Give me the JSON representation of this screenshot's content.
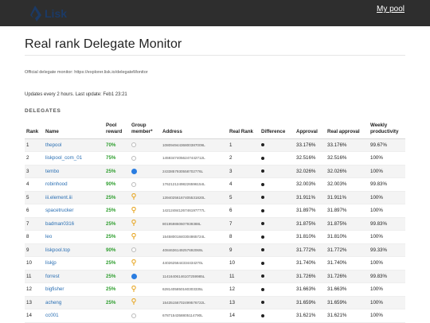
{
  "header": {
    "logo_text": "Lisk",
    "my_pool_label": "My pool"
  },
  "page": {
    "title": "Real rank Delegate Monitor",
    "description": "Official delegate monitor: https://explorer.lisk.io/delegateMonitor",
    "updates": "Updates every 2 hours. Last update: Feb1 23:21",
    "section_label": "DELEGATES"
  },
  "table": {
    "headers": {
      "rank": "Rank",
      "name": "Name",
      "pool_reward": "Pool reward",
      "group_member": "Group member*",
      "address": "Address",
      "real_rank": "Real Rank",
      "difference": "Difference",
      "approval": "Approval",
      "real_approval": "Real approval",
      "weekly_productivity": "Weekly productivity"
    },
    "rows": [
      {
        "rank": "1",
        "name": "thepool",
        "reward": "70%",
        "group": "empty",
        "address": "10809494436800387009L",
        "real_rank": "1",
        "approval": "33.176%",
        "real_approval": "33.176%",
        "productivity": "99.67%"
      },
      {
        "rank": "2",
        "name": "liskpool_com_01",
        "reward": "75%",
        "group": "empty",
        "address": "14593474056247442712L",
        "real_rank": "2",
        "approval": "32.516%",
        "real_approval": "32.516%",
        "productivity": "100%"
      },
      {
        "rank": "3",
        "name": "tembo",
        "reward": "25%",
        "group": "full",
        "address": "2433857930558702776L",
        "real_rank": "3",
        "approval": "32.026%",
        "real_approval": "32.026%",
        "productivity": "100%"
      },
      {
        "rank": "4",
        "name": "robinhood",
        "reward": "90%",
        "group": "empty",
        "address": "17621212498226596154L",
        "real_rank": "4",
        "approval": "32.003%",
        "real_approval": "32.003%",
        "productivity": "99.83%"
      },
      {
        "rank": "5",
        "name": "iii.element.iii",
        "reward": "25%",
        "group": "pin",
        "address": "13940256167405531820L",
        "real_rank": "5",
        "approval": "31.911%",
        "real_approval": "31.911%",
        "productivity": "100%"
      },
      {
        "rank": "6",
        "name": "spacetrucker",
        "reward": "25%",
        "group": "pin",
        "address": "14212484126746197777L",
        "real_rank": "6",
        "approval": "31.897%",
        "real_approval": "31.897%",
        "productivity": "100%"
      },
      {
        "rank": "7",
        "name": "badman0316",
        "reward": "25%",
        "group": "pin",
        "address": "801959860607939388L",
        "real_rank": "7",
        "approval": "31.875%",
        "real_approval": "31.875%",
        "productivity": "99.83%"
      },
      {
        "rank": "8",
        "name": "leo",
        "reward": "25%",
        "group": "pin",
        "address": "15458001840304865724L",
        "real_rank": "8",
        "approval": "31.810%",
        "real_approval": "31.810%",
        "productivity": "100%"
      },
      {
        "rank": "9",
        "name": "liskpool.top",
        "reward": "90%",
        "group": "empty",
        "address": "4084636149257692069L",
        "real_rank": "9",
        "approval": "31.772%",
        "real_approval": "31.772%",
        "productivity": "99.33%"
      },
      {
        "rank": "10",
        "name": "liskjp",
        "reward": "25%",
        "group": "pin",
        "address": "4402625644334434270L",
        "real_rank": "10",
        "approval": "31.740%",
        "real_approval": "31.740%",
        "productivity": "100%"
      },
      {
        "rank": "11",
        "name": "forrest",
        "reward": "25%",
        "group": "full",
        "address": "11416406146107259985L",
        "real_rank": "11",
        "approval": "31.726%",
        "real_approval": "31.726%",
        "productivity": "99.83%"
      },
      {
        "rank": "12",
        "name": "bigfisher",
        "reward": "25%",
        "group": "pin",
        "address": "6281405850160303335L",
        "real_rank": "12",
        "approval": "31.663%",
        "real_approval": "31.663%",
        "productivity": "100%"
      },
      {
        "rank": "13",
        "name": "acheng",
        "reward": "25%",
        "group": "pin",
        "address": "15435156702499576722L",
        "real_rank": "13",
        "approval": "31.659%",
        "real_approval": "31.659%",
        "productivity": "100%"
      },
      {
        "rank": "14",
        "name": "cc001",
        "reward": "",
        "group": "empty",
        "address": "6787154358805114790L",
        "real_rank": "14",
        "approval": "31.621%",
        "real_approval": "31.621%",
        "productivity": "100%"
      }
    ]
  },
  "colors": {
    "topbar": "#2e2e2e",
    "link": "#2a6fb3",
    "reward": "#2e9e2e",
    "group_full": "#2a7de1",
    "group_pin": "#e8a92a"
  },
  "icons": {
    "logo": "lisk-logo-icon",
    "group_empty": "empty-circle-icon",
    "group_full": "filled-circle-icon",
    "group_pin": "pin-icon",
    "difference": "dot-icon"
  }
}
